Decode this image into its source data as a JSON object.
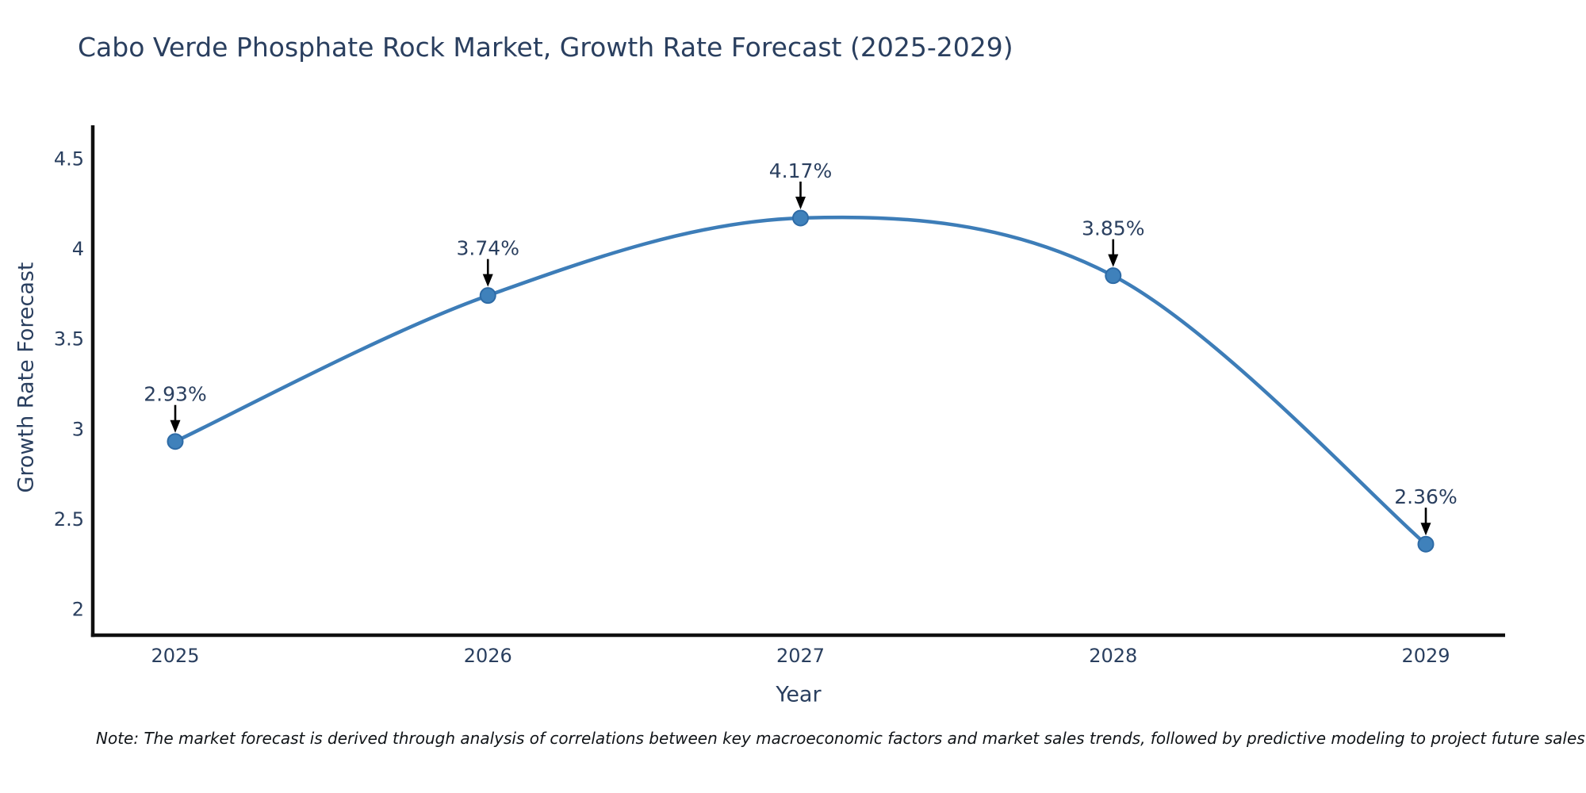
{
  "chart_data": {
    "type": "line",
    "title": "Cabo Verde Phosphate Rock Market, Growth Rate Forecast (2025-2029)",
    "xlabel": "Year",
    "ylabel": "Growth Rate Forecast",
    "x": [
      2025,
      2026,
      2027,
      2028,
      2029
    ],
    "values": [
      2.93,
      3.74,
      4.17,
      3.85,
      2.36
    ],
    "point_labels": [
      "2.93%",
      "3.74%",
      "4.17%",
      "3.85%",
      "2.36%"
    ],
    "x_tick_labels": [
      "2025",
      "2026",
      "2027",
      "2028",
      "2029"
    ],
    "y_ticks": [
      2,
      2.5,
      3,
      3.5,
      4,
      4.5
    ],
    "y_tick_labels": [
      "2",
      "2.5",
      "3",
      "3.5",
      "4",
      "4.5"
    ],
    "ylim": [
      1.85,
      4.7
    ],
    "grid": false,
    "legend": false,
    "line_shape": "spline",
    "line_color": "#3d7db8",
    "marker_color": "#3f81bb",
    "marker_edge_color": "#2e6ba6",
    "axis_color": "#0f0f0f",
    "text_color": "#2a3f5f",
    "annotation_arrow_color": "#000000",
    "note": "Note: The market forecast is derived through analysis of correlations between key macroeconomic factors and market sales trends, followed by predictive modeling to project future sales"
  }
}
